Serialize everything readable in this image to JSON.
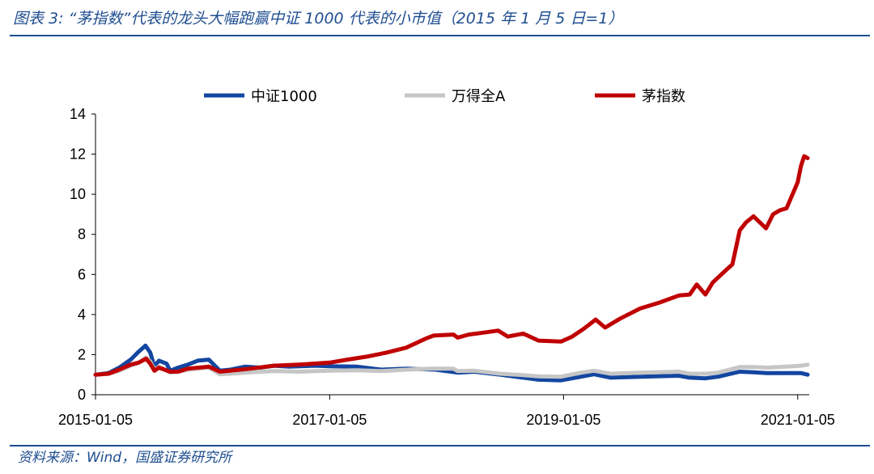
{
  "title": "图表 3:  “茅指数”代表的龙头大幅跑赢中证 1000 代表的小市值（2015 年 1 月 5 日=1）",
  "source": "资料来源：Wind，国盛证券研究所",
  "colors": {
    "accent": "#1f4e91",
    "zz1000": "#1346a0",
    "wind_a": "#c6c6c6",
    "mao": "#c00000"
  },
  "chart_data": {
    "type": "line",
    "title": "",
    "xlabel": "",
    "ylabel": "",
    "legend_position": "top",
    "grid": false,
    "xlim": [
      "2015-01-05",
      "2021-02-10"
    ],
    "ylim": [
      0,
      14
    ],
    "yticks": [
      0,
      2,
      4,
      6,
      8,
      10,
      12,
      14
    ],
    "xticks": [
      "2015-01-05",
      "2017-01-05",
      "2019-01-05",
      "2021-01-05"
    ],
    "series": [
      {
        "name": "中证1000",
        "color": "#1346a0",
        "points": [
          [
            "2015-01-05",
            1.0
          ],
          [
            "2015-02-15",
            1.08
          ],
          [
            "2015-03-20",
            1.35
          ],
          [
            "2015-04-25",
            1.75
          ],
          [
            "2015-05-20",
            2.15
          ],
          [
            "2015-06-10",
            2.45
          ],
          [
            "2015-06-25",
            2.1
          ],
          [
            "2015-07-08",
            1.4
          ],
          [
            "2015-07-22",
            1.7
          ],
          [
            "2015-08-15",
            1.55
          ],
          [
            "2015-08-26",
            1.2
          ],
          [
            "2015-09-20",
            1.35
          ],
          [
            "2015-10-20",
            1.5
          ],
          [
            "2015-11-20",
            1.7
          ],
          [
            "2015-12-25",
            1.75
          ],
          [
            "2016-01-28",
            1.2
          ],
          [
            "2016-03-01",
            1.25
          ],
          [
            "2016-04-15",
            1.4
          ],
          [
            "2016-06-01",
            1.35
          ],
          [
            "2016-07-15",
            1.45
          ],
          [
            "2016-09-01",
            1.4
          ],
          [
            "2016-11-20",
            1.45
          ],
          [
            "2017-01-05",
            1.42
          ],
          [
            "2017-04-01",
            1.4
          ],
          [
            "2017-06-15",
            1.25
          ],
          [
            "2017-09-01",
            1.3
          ],
          [
            "2017-12-01",
            1.25
          ],
          [
            "2018-02-09",
            1.1
          ],
          [
            "2018-04-01",
            1.15
          ],
          [
            "2018-06-20",
            1.0
          ],
          [
            "2018-09-01",
            0.85
          ],
          [
            "2018-10-19",
            0.75
          ],
          [
            "2018-12-28",
            0.72
          ],
          [
            "2019-03-01",
            0.9
          ],
          [
            "2019-04-10",
            1.02
          ],
          [
            "2019-06-01",
            0.85
          ],
          [
            "2019-09-01",
            0.9
          ],
          [
            "2019-12-31",
            0.95
          ],
          [
            "2020-02-03",
            0.85
          ],
          [
            "2020-03-23",
            0.82
          ],
          [
            "2020-05-01",
            0.9
          ],
          [
            "2020-07-08",
            1.15
          ],
          [
            "2020-08-20",
            1.12
          ],
          [
            "2020-10-01",
            1.08
          ],
          [
            "2020-12-01",
            1.08
          ],
          [
            "2021-01-15",
            1.08
          ],
          [
            "2021-02-05",
            1.0
          ]
        ]
      },
      {
        "name": "万得全A",
        "color": "#c6c6c6",
        "points": [
          [
            "2015-01-05",
            1.0
          ],
          [
            "2015-02-15",
            1.05
          ],
          [
            "2015-03-20",
            1.2
          ],
          [
            "2015-04-25",
            1.45
          ],
          [
            "2015-05-20",
            1.6
          ],
          [
            "2015-06-12",
            1.85
          ],
          [
            "2015-06-25",
            1.65
          ],
          [
            "2015-07-08",
            1.25
          ],
          [
            "2015-07-22",
            1.4
          ],
          [
            "2015-08-26",
            1.1
          ],
          [
            "2015-09-20",
            1.15
          ],
          [
            "2015-10-20",
            1.25
          ],
          [
            "2015-12-25",
            1.35
          ],
          [
            "2016-01-28",
            1.02
          ],
          [
            "2016-03-01",
            1.05
          ],
          [
            "2016-05-01",
            1.12
          ],
          [
            "2016-07-15",
            1.18
          ],
          [
            "2016-10-01",
            1.15
          ],
          [
            "2017-01-05",
            1.2
          ],
          [
            "2017-04-01",
            1.22
          ],
          [
            "2017-06-15",
            1.18
          ],
          [
            "2017-09-01",
            1.25
          ],
          [
            "2017-11-20",
            1.3
          ],
          [
            "2018-01-26",
            1.3
          ],
          [
            "2018-02-09",
            1.18
          ],
          [
            "2018-04-01",
            1.2
          ],
          [
            "2018-06-20",
            1.05
          ],
          [
            "2018-09-01",
            0.98
          ],
          [
            "2018-10-19",
            0.92
          ],
          [
            "2018-12-28",
            0.9
          ],
          [
            "2019-03-01",
            1.1
          ],
          [
            "2019-04-10",
            1.2
          ],
          [
            "2019-06-01",
            1.05
          ],
          [
            "2019-09-01",
            1.1
          ],
          [
            "2019-12-31",
            1.15
          ],
          [
            "2020-02-03",
            1.05
          ],
          [
            "2020-03-23",
            1.05
          ],
          [
            "2020-05-01",
            1.1
          ],
          [
            "2020-07-08",
            1.38
          ],
          [
            "2020-08-20",
            1.38
          ],
          [
            "2020-10-01",
            1.35
          ],
          [
            "2020-12-01",
            1.4
          ],
          [
            "2021-01-15",
            1.45
          ],
          [
            "2021-02-05",
            1.5
          ]
        ]
      },
      {
        "name": "茅指数",
        "color": "#c00000",
        "points": [
          [
            "2015-01-05",
            1.0
          ],
          [
            "2015-02-15",
            1.05
          ],
          [
            "2015-03-20",
            1.25
          ],
          [
            "2015-04-25",
            1.5
          ],
          [
            "2015-05-20",
            1.6
          ],
          [
            "2015-06-12",
            1.8
          ],
          [
            "2015-06-25",
            1.55
          ],
          [
            "2015-07-08",
            1.2
          ],
          [
            "2015-07-22",
            1.35
          ],
          [
            "2015-08-26",
            1.15
          ],
          [
            "2015-09-20",
            1.15
          ],
          [
            "2015-10-20",
            1.3
          ],
          [
            "2015-12-25",
            1.4
          ],
          [
            "2016-01-28",
            1.15
          ],
          [
            "2016-03-01",
            1.2
          ],
          [
            "2016-05-01",
            1.3
          ],
          [
            "2016-07-15",
            1.45
          ],
          [
            "2016-10-01",
            1.5
          ],
          [
            "2017-01-05",
            1.6
          ],
          [
            "2017-03-01",
            1.75
          ],
          [
            "2017-05-01",
            1.9
          ],
          [
            "2017-07-01",
            2.1
          ],
          [
            "2017-09-01",
            2.35
          ],
          [
            "2017-11-01",
            2.8
          ],
          [
            "2017-11-25",
            2.95
          ],
          [
            "2018-01-26",
            3.0
          ],
          [
            "2018-02-09",
            2.85
          ],
          [
            "2018-03-15",
            3.0
          ],
          [
            "2018-05-01",
            3.1
          ],
          [
            "2018-06-15",
            3.2
          ],
          [
            "2018-07-15",
            2.9
          ],
          [
            "2018-09-01",
            3.05
          ],
          [
            "2018-10-19",
            2.7
          ],
          [
            "2018-12-28",
            2.65
          ],
          [
            "2019-02-01",
            2.9
          ],
          [
            "2019-03-10",
            3.3
          ],
          [
            "2019-04-15",
            3.75
          ],
          [
            "2019-05-15",
            3.35
          ],
          [
            "2019-07-01",
            3.8
          ],
          [
            "2019-09-01",
            4.3
          ],
          [
            "2019-11-01",
            4.6
          ],
          [
            "2019-12-31",
            4.95
          ],
          [
            "2020-02-03",
            5.0
          ],
          [
            "2020-02-25",
            5.5
          ],
          [
            "2020-03-23",
            5.0
          ],
          [
            "2020-04-15",
            5.6
          ],
          [
            "2020-05-25",
            6.2
          ],
          [
            "2020-06-15",
            6.5
          ],
          [
            "2020-07-08",
            8.2
          ],
          [
            "2020-07-28",
            8.6
          ],
          [
            "2020-08-20",
            8.9
          ],
          [
            "2020-09-28",
            8.3
          ],
          [
            "2020-10-20",
            9.0
          ],
          [
            "2020-11-10",
            9.2
          ],
          [
            "2020-12-01",
            9.3
          ],
          [
            "2020-12-20",
            10.0
          ],
          [
            "2021-01-05",
            10.6
          ],
          [
            "2021-01-15",
            11.4
          ],
          [
            "2021-01-25",
            11.9
          ],
          [
            "2021-02-05",
            11.8
          ]
        ]
      }
    ]
  }
}
